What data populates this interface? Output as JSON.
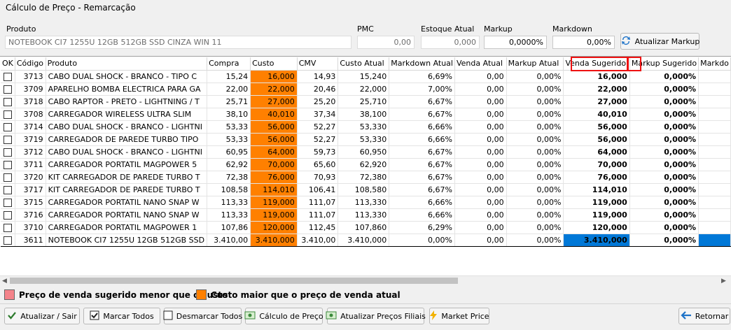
{
  "window": {
    "title": "Cálculo de Preço - Remarcação"
  },
  "fields": {
    "produto": {
      "label": "Produto",
      "value": "NOTEBOOK CI7 1255U 12GB 512GB SSD CINZA WIN 11"
    },
    "pmc": {
      "label": "PMC",
      "value": "0,00"
    },
    "estoque_atual": {
      "label": "Estoque Atual",
      "value": "0,000"
    },
    "markup": {
      "label": "Markup",
      "value": "0,0000%"
    },
    "markdown": {
      "label": "Markdown",
      "value": "0,00%"
    }
  },
  "buttons": {
    "atualizar_markup": "Atualizar Markup",
    "atualizar_sair": "Atualizar / Sair",
    "marcar_todos": "Marcar Todos",
    "desmarcar_todos": "Desmarcar Todos",
    "calculo_preco": "Cálculo de Preço",
    "atualizar_precos_filiais": "Atualizar Preços Filiais",
    "market_price": "Market Price",
    "retornar": "Retornar"
  },
  "table": {
    "columns": [
      "OK",
      "Código",
      "Produto",
      "Compra",
      "Custo",
      "CMV",
      "Custo Atual",
      "Markdown Atual",
      "Venda Atual",
      "Markup Atual",
      "Venda Sugerido",
      "Markup Sugerido",
      "Markdo"
    ],
    "sort_indicator": "/",
    "rows": [
      [
        "",
        "3713",
        "CABO DUAL SHOCK - BRANCO - TIPO C",
        "15,24",
        "16,000",
        "14,93",
        "15,240",
        "6,69%",
        "0,00",
        "0,00%",
        "16,000",
        "0,000%",
        ""
      ],
      [
        "",
        "3709",
        "APARELHO BOMBA ELECTRICA PARA GA",
        "22,00",
        "22,000",
        "20,46",
        "22,000",
        "7,00%",
        "0,00",
        "0,00%",
        "22,000",
        "0,000%",
        ""
      ],
      [
        "",
        "3718",
        "CABO RAPTOR - PRETO - LIGHTNING / T",
        "25,71",
        "27,000",
        "25,20",
        "25,710",
        "6,67%",
        "0,00",
        "0,00%",
        "27,000",
        "0,000%",
        ""
      ],
      [
        "",
        "3708",
        "CARREGADOR WIRELESS ULTRA SLIM",
        "38,10",
        "40,010",
        "37,34",
        "38,100",
        "6,67%",
        "0,00",
        "0,00%",
        "40,010",
        "0,000%",
        ""
      ],
      [
        "",
        "3714",
        "CABO DUAL SHOCK - BRANCO - LIGHTNI",
        "53,33",
        "56,000",
        "52,27",
        "53,330",
        "6,66%",
        "0,00",
        "0,00%",
        "56,000",
        "0,000%",
        ""
      ],
      [
        "",
        "3719",
        "CARREGADOR DE PAREDE TURBO TIPO",
        "53,33",
        "56,000",
        "52,27",
        "53,330",
        "6,66%",
        "0,00",
        "0,00%",
        "56,000",
        "0,000%",
        ""
      ],
      [
        "",
        "3712",
        "CABO DUAL SHOCK - BRANCO - LIGHTNI",
        "60,95",
        "64,000",
        "59,73",
        "60,950",
        "6,67%",
        "0,00",
        "0,00%",
        "64,000",
        "0,000%",
        ""
      ],
      [
        "",
        "3711",
        "CARREGADOR PORTATIL MAGPOWER 5",
        "62,92",
        "70,000",
        "65,60",
        "62,920",
        "6,67%",
        "0,00",
        "0,00%",
        "70,000",
        "0,000%",
        ""
      ],
      [
        "",
        "3720",
        "KIT CARREGADOR DE PAREDE TURBO T",
        "72,38",
        "76,000",
        "70,93",
        "72,380",
        "6,67%",
        "0,00",
        "0,00%",
        "76,000",
        "0,000%",
        ""
      ],
      [
        "",
        "3717",
        "KIT CARREGADOR DE PAREDE TURBO T",
        "108,58",
        "114,010",
        "106,41",
        "108,580",
        "6,67%",
        "0,00",
        "0,00%",
        "114,010",
        "0,000%",
        ""
      ],
      [
        "",
        "3715",
        "CARREGADOR PORTATIL NANO SNAP W",
        "113,33",
        "119,000",
        "111,07",
        "113,330",
        "6,66%",
        "0,00",
        "0,00%",
        "119,000",
        "0,000%",
        ""
      ],
      [
        "",
        "3716",
        "CARREGADOR PORTATIL NANO SNAP W",
        "113,33",
        "119,000",
        "111,07",
        "113,330",
        "6,66%",
        "0,00",
        "0,00%",
        "119,000",
        "0,000%",
        ""
      ],
      [
        "",
        "3710",
        "CARREGADOR PORTATIL MAGPOWER 1",
        "107,86",
        "120,000",
        "112,45",
        "107,860",
        "6,29%",
        "0,00",
        "0,00%",
        "120,000",
        "0,000%",
        ""
      ],
      [
        "",
        "3611",
        "NOTEBOOK CI7 1255U 12GB 512GB SSD",
        "3.410,00",
        "3.410,000",
        "3.410,00",
        "3.410,000",
        "0,00%",
        "0,00",
        "0,00%",
        "3.410,000",
        "0,000%",
        ""
      ]
    ],
    "selected_row_index": 13
  },
  "legend": [
    {
      "label": "Preço de venda sugerido menor que o custo",
      "color": "#f4838a"
    },
    {
      "label": "Custo maior que o preço de venda atual",
      "color": "#ff8000"
    }
  ],
  "colors": {
    "custo_highlight": "#ff8000",
    "selection": "#0078d7",
    "annotation_box": "#e11111"
  }
}
